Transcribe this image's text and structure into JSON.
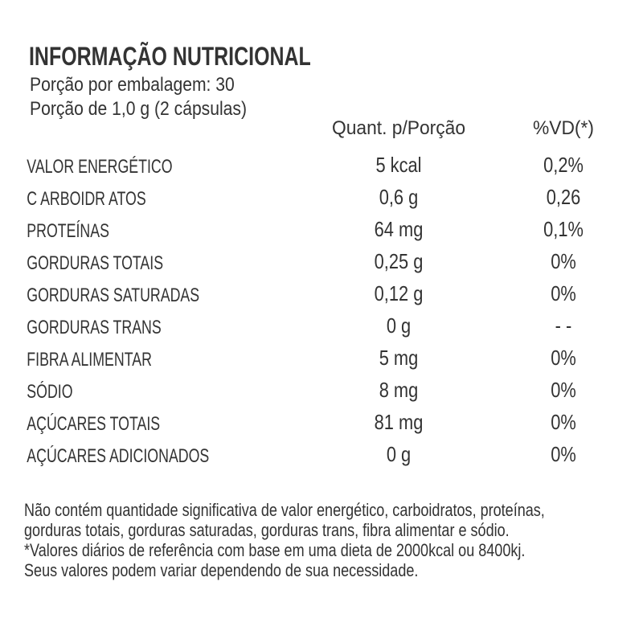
{
  "label": {
    "title": "INFORMAÇÃO NUTRICIONAL",
    "servings_per_package": "Porção por embalagem: 30",
    "serving_size": "Porção de 1,0 g (2 cápsulas)"
  },
  "table": {
    "col_quantity": "Quant. p/Porção",
    "col_dv": "%VD(*)",
    "rows": [
      {
        "label": "VALOR ENERGÉTICO",
        "quantity": "5 kcal",
        "dv": "0,2%"
      },
      {
        "label": "C ARBOIDR ATOS",
        "quantity": "0,6 g",
        "dv": "0,26"
      },
      {
        "label": "PROTEÍNAS",
        "quantity": "64 mg",
        "dv": "0,1%"
      },
      {
        "label": "GORDURAS TOTAIS",
        "quantity": "0,25 g",
        "dv": "0%"
      },
      {
        "label": "GORDURAS SATURADAS",
        "quantity": "0,12 g",
        "dv": "0%"
      },
      {
        "label": "GORDURAS TRANS",
        "quantity": "0 g",
        "dv": "- -"
      },
      {
        "label": "FIBRA ALIMENTAR",
        "quantity": "5 mg",
        "dv": "0%"
      },
      {
        "label": "SÓDIO",
        "quantity": "8 mg",
        "dv": "0%"
      },
      {
        "label": "AÇÚCARES TOTAIS",
        "quantity": "81 mg",
        "dv": "0%"
      },
      {
        "label": "AÇÚCARES ADICIONADOS",
        "quantity": "0 g",
        "dv": "0%"
      }
    ]
  },
  "footnote": {
    "lines": [
      "Não contém quantidade significativa de valor energético, carboidratos, proteínas,",
      "gorduras totais, gorduras saturadas, gorduras trans, fibra alimentar e sódio.",
      "*Valores diários de referência com base em uma dieta de 2000kcal ou 8400kj.",
      "Seus valores podem variar dependendo de sua necessidade."
    ]
  },
  "colors": {
    "text": "#333333",
    "background": "#ffffff"
  }
}
